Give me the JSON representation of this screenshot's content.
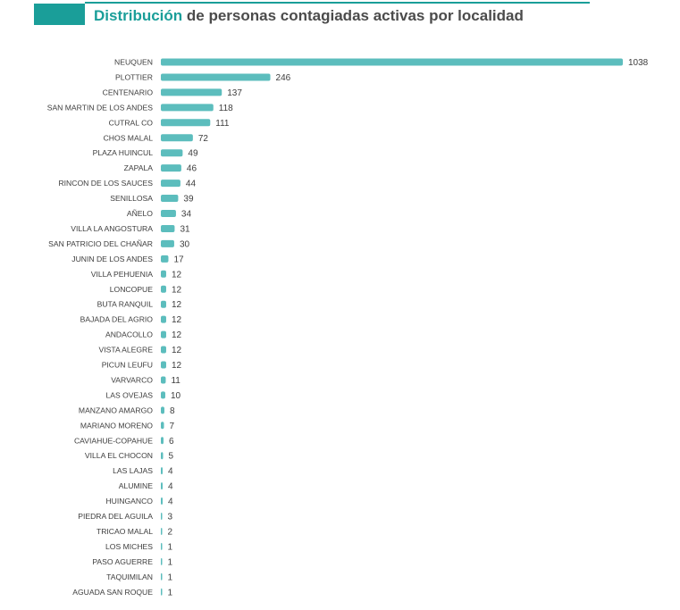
{
  "header": {
    "title_accent": "Distribución",
    "title_rest": "de personas contagiadas activas por localidad"
  },
  "colors": {
    "accent": "#1a9e99",
    "bar": "#5cbdbd",
    "text": "#3d3d3d"
  },
  "chart_data": {
    "type": "bar",
    "orientation": "horizontal",
    "title": "Distribución de personas contagiadas activas por localidad",
    "xlabel": "",
    "ylabel": "",
    "xlim": [
      0,
      1038
    ],
    "grid": false,
    "categories": [
      "NEUQUEN",
      "PLOTTIER",
      "CENTENARIO",
      "SAN MARTIN DE LOS ANDES",
      "CUTRAL CO",
      "CHOS MALAL",
      "PLAZA HUINCUL",
      "ZAPALA",
      "RINCON DE LOS SAUCES",
      "SENILLOSA",
      "AÑELO",
      "VILLA LA ANGOSTURA",
      "SAN PATRICIO DEL CHAÑAR",
      "JUNIN DE LOS ANDES",
      "VILLA PEHUENIA",
      "LONCOPUE",
      "BUTA RANQUIL",
      "BAJADA DEL AGRIO",
      "ANDACOLLO",
      "VISTA ALEGRE",
      "PICUN LEUFU",
      "VARVARCO",
      "LAS OVEJAS",
      "MANZANO AMARGO",
      "MARIANO MORENO",
      "CAVIAHUE-COPAHUE",
      "VILLA EL CHOCON",
      "LAS LAJAS",
      "ALUMINE",
      "HUINGANCO",
      "PIEDRA DEL AGUILA",
      "TRICAO MALAL",
      "LOS MICHES",
      "PASO AGUERRE",
      "TAQUIMILAN",
      "AGUADA SAN ROQUE"
    ],
    "values": [
      1038,
      246,
      137,
      118,
      111,
      72,
      49,
      46,
      44,
      39,
      34,
      31,
      30,
      17,
      12,
      12,
      12,
      12,
      12,
      12,
      12,
      11,
      10,
      8,
      7,
      6,
      5,
      4,
      4,
      4,
      3,
      2,
      1,
      1,
      1,
      1
    ]
  }
}
